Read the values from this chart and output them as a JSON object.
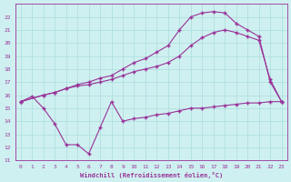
{
  "background_color": "#cff0f0",
  "grid_color": "#aadddd",
  "line_color": "#993399",
  "xlabel": "Windchill (Refroidissement éolien,°C)",
  "ylim": [
    11,
    23
  ],
  "xlim": [
    -0.5,
    23.5
  ],
  "yticks": [
    11,
    12,
    13,
    14,
    15,
    16,
    17,
    18,
    19,
    20,
    21,
    22
  ],
  "xticks": [
    0,
    1,
    2,
    3,
    4,
    5,
    6,
    7,
    8,
    9,
    10,
    11,
    12,
    13,
    14,
    15,
    16,
    17,
    18,
    19,
    20,
    21,
    22,
    23
  ],
  "curve_min_x": [
    0,
    1,
    2,
    3,
    4,
    5,
    6,
    7,
    8,
    9,
    10,
    11,
    12,
    13,
    14,
    15,
    16,
    17,
    18,
    19,
    20,
    21,
    22,
    23
  ],
  "curve_min_y": [
    15.5,
    15.9,
    15.0,
    13.8,
    12.2,
    12.2,
    11.5,
    13.5,
    15.5,
    14.0,
    14.2,
    14.3,
    14.5,
    14.6,
    14.8,
    15.0,
    15.0,
    15.1,
    15.2,
    15.3,
    15.4,
    15.4,
    15.5,
    15.5
  ],
  "curve_mid_x": [
    0,
    2,
    3,
    4,
    5,
    6,
    7,
    8,
    9,
    10,
    11,
    12,
    13,
    14,
    15,
    16,
    17,
    18,
    19,
    20,
    21,
    22,
    23
  ],
  "curve_mid_y": [
    15.5,
    16.0,
    16.2,
    16.5,
    16.7,
    16.8,
    17.0,
    17.2,
    17.5,
    17.8,
    18.0,
    18.2,
    18.5,
    19.0,
    19.8,
    20.4,
    20.8,
    21.0,
    20.8,
    20.5,
    20.2,
    17.2,
    15.5
  ],
  "curve_max_x": [
    0,
    2,
    3,
    4,
    5,
    6,
    7,
    8,
    9,
    10,
    11,
    12,
    13,
    14,
    15,
    16,
    17,
    18,
    19,
    20,
    21,
    22,
    23
  ],
  "curve_max_y": [
    15.5,
    16.0,
    16.2,
    16.5,
    16.8,
    17.0,
    17.3,
    17.5,
    18.0,
    18.5,
    18.8,
    19.3,
    19.8,
    21.0,
    22.0,
    22.3,
    22.4,
    22.3,
    21.5,
    21.0,
    20.5,
    17.0,
    15.5
  ]
}
